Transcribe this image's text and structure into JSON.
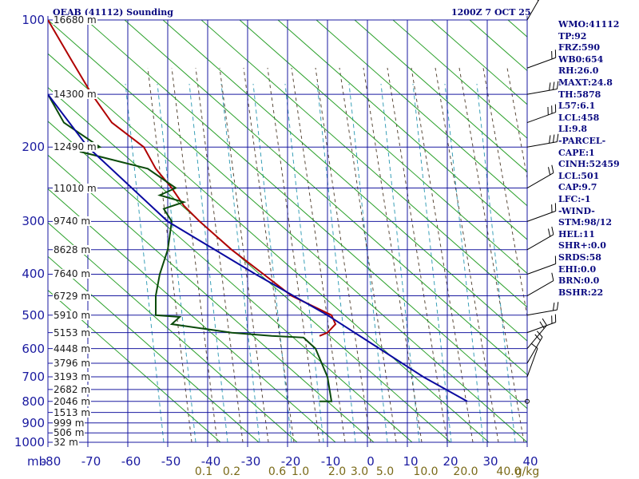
{
  "header": {
    "title": "OEAB (41112) Sounding",
    "datetime": "1200Z  7 OCT 25"
  },
  "chart_data": {
    "type": "line",
    "pressure_unit_label": "mb",
    "pressure_levels": [
      100,
      200,
      300,
      400,
      500,
      600,
      700,
      800,
      900,
      1000
    ],
    "temp_ticks": [
      -80,
      -70,
      -60,
      -50,
      -40,
      -30,
      -20,
      -10,
      0,
      10,
      20,
      30,
      40
    ],
    "temp_tick_labels": [
      "-80",
      "-70",
      "-60",
      "-50",
      "-40",
      "-30",
      "-20",
      "-10",
      "0",
      "10",
      "20",
      "30",
      "40"
    ],
    "mixing_ratio_labels": [
      "0.1",
      "0.2",
      "0.6",
      "1.0",
      "2.0",
      "3.0",
      "5.0",
      "10.0",
      "20.0",
      "40.0"
    ],
    "mixing_ratio_unit": "g/kg",
    "height_labels": [
      {
        "p": 100,
        "text": "16680 m"
      },
      {
        "p": 150,
        "text": "14300 m"
      },
      {
        "p": 200,
        "text": "12490 m"
      },
      {
        "p": 250,
        "text": "11010 m"
      },
      {
        "p": 300,
        "text": "9740 m"
      },
      {
        "p": 350,
        "text": "8628 m"
      },
      {
        "p": 400,
        "text": "7640 m"
      },
      {
        "p": 450,
        "text": "6729 m"
      },
      {
        "p": 500,
        "text": "5910 m"
      },
      {
        "p": 550,
        "text": "5153 m"
      },
      {
        "p": 600,
        "text": "4448 m"
      },
      {
        "p": 650,
        "text": "3796 m"
      },
      {
        "p": 700,
        "text": "3193 m"
      },
      {
        "p": 750,
        "text": "2682 m"
      },
      {
        "p": 800,
        "text": "2046 m"
      },
      {
        "p": 850,
        "text": "1513 m"
      },
      {
        "p": 900,
        "text": "999 m"
      },
      {
        "p": 950,
        "text": "506 m"
      },
      {
        "p": 1000,
        "text": "32 m"
      }
    ],
    "series": [
      {
        "color": "#b00000",
        "points": [
          {
            "p": 100,
            "t": -80
          },
          {
            "p": 125,
            "t": -74
          },
          {
            "p": 150,
            "t": -69
          },
          {
            "p": 175,
            "t": -64
          },
          {
            "p": 200,
            "t": -56
          },
          {
            "p": 225,
            "t": -53
          },
          {
            "p": 250,
            "t": -49
          },
          {
            "p": 275,
            "t": -46
          },
          {
            "p": 300,
            "t": -42
          },
          {
            "p": 350,
            "t": -34
          },
          {
            "p": 400,
            "t": -26
          },
          {
            "p": 450,
            "t": -19
          },
          {
            "p": 500,
            "t": -9
          },
          {
            "p": 525,
            "t": -8
          },
          {
            "p": 550,
            "t": -10
          },
          {
            "p": 560,
            "t": -12
          }
        ]
      },
      {
        "color": "#0a4a0a",
        "points": [
          {
            "p": 150,
            "t": -80
          },
          {
            "p": 175,
            "t": -76
          },
          {
            "p": 200,
            "t": -67
          },
          {
            "p": 205,
            "t": -72
          },
          {
            "p": 225,
            "t": -55
          },
          {
            "p": 250,
            "t": -48
          },
          {
            "p": 260,
            "t": -52
          },
          {
            "p": 270,
            "t": -46
          },
          {
            "p": 280,
            "t": -51
          },
          {
            "p": 300,
            "t": -49
          },
          {
            "p": 350,
            "t": -50
          },
          {
            "p": 400,
            "t": -52
          },
          {
            "p": 450,
            "t": -53
          },
          {
            "p": 500,
            "t": -53
          },
          {
            "p": 505,
            "t": -47
          },
          {
            "p": 525,
            "t": -49
          },
          {
            "p": 550,
            "t": -34
          },
          {
            "p": 560,
            "t": -24
          },
          {
            "p": 565,
            "t": -16
          },
          {
            "p": 600,
            "t": -13
          },
          {
            "p": 700,
            "t": -10
          },
          {
            "p": 800,
            "t": -9
          },
          {
            "p": 800,
            "t": -12
          }
        ]
      },
      {
        "color": "#0a0aa0",
        "points": [
          {
            "p": 800,
            "t": 25
          },
          {
            "p": 700,
            "t": 14
          },
          {
            "p": 600,
            "t": 3
          },
          {
            "p": 500,
            "t": -10
          },
          {
            "p": 400,
            "t": -28
          },
          {
            "p": 300,
            "t": -50
          },
          {
            "p": 200,
            "t": -70
          },
          {
            "p": 150,
            "t": -80
          }
        ]
      }
    ],
    "wind_barbs": [
      {
        "p": 100,
        "dir": 210,
        "spd": 25
      },
      {
        "p": 130,
        "dir": 250,
        "spd": 20
      },
      {
        "p": 150,
        "dir": 260,
        "spd": 25
      },
      {
        "p": 175,
        "dir": 250,
        "spd": 30
      },
      {
        "p": 200,
        "dir": 260,
        "spd": 25
      },
      {
        "p": 250,
        "dir": 240,
        "spd": 20
      },
      {
        "p": 300,
        "dir": 250,
        "spd": 15
      },
      {
        "p": 350,
        "dir": 240,
        "spd": 15
      },
      {
        "p": 400,
        "dir": 250,
        "spd": 10
      },
      {
        "p": 450,
        "dir": 240,
        "spd": 10
      },
      {
        "p": 500,
        "dir": 260,
        "spd": 15
      },
      {
        "p": 550,
        "dir": 250,
        "spd": 20
      },
      {
        "p": 600,
        "dir": 220,
        "spd": 20
      },
      {
        "p": 650,
        "dir": 210,
        "spd": 15
      },
      {
        "p": 700,
        "dir": 200,
        "spd": 10
      },
      {
        "p": 800,
        "dir": 0,
        "spd": 0
      }
    ],
    "indices": [
      "WMO:41112",
      "TP:92",
      "FRZ:590",
      "WB0:654",
      "RH:26.0",
      "MAXT:24.8",
      "TH:5878",
      "L57:6.1",
      "LCL:458",
      "LI:9.8",
      "-PARCEL-",
      "CAPE:1",
      "CINH:52459",
      "LCL:501",
      "CAP:9.7",
      "LFC:-1",
      "-WIND-",
      "STM:98/12",
      "HEL:11",
      "SHR+:0.0",
      "SRDS:58",
      "EHI:0.0",
      "BRN:0.0",
      "BSHR:22"
    ]
  }
}
